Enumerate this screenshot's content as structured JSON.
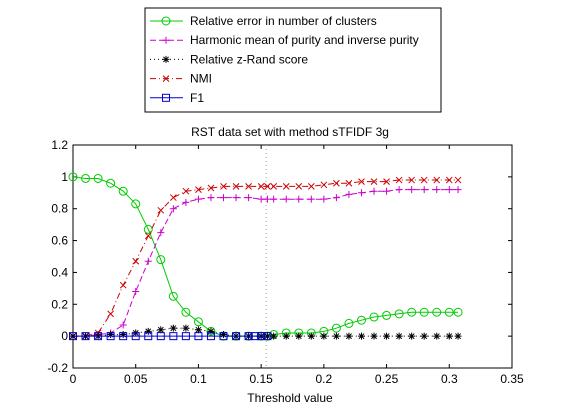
{
  "chart_data": {
    "type": "line",
    "title": "RST data set with method sTFIDF 3g",
    "xlabel": "Threshold value",
    "ylabel": "",
    "xlim": [
      0,
      0.35
    ],
    "ylim": [
      -0.2,
      1.2
    ],
    "xticks": [
      0,
      0.05,
      0.1,
      0.15,
      0.2,
      0.25,
      0.3,
      0.35
    ],
    "xtick_labels": [
      "0",
      "0.05",
      "0.1",
      "0.15",
      "0.2",
      "0.25",
      "0.3",
      "0.35"
    ],
    "yticks": [
      -0.2,
      0,
      0.2,
      0.4,
      0.6,
      0.8,
      1,
      1.2
    ],
    "ytick_labels": [
      "-0.2",
      "0",
      "0.2",
      "0.4",
      "0.6",
      "0.8",
      "1",
      "1.2"
    ],
    "grid": false,
    "legend_position": "top",
    "vertical_reference_line": {
      "x": 0.154,
      "style": "dotted",
      "color": "#a0a0a0"
    },
    "x": [
      0,
      0.01,
      0.02,
      0.03,
      0.04,
      0.05,
      0.06,
      0.07,
      0.08,
      0.09,
      0.1,
      0.11,
      0.12,
      0.13,
      0.14,
      0.15,
      0.16,
      0.17,
      0.18,
      0.19,
      0.2,
      0.21,
      0.22,
      0.23,
      0.24,
      0.25,
      0.26,
      0.27,
      0.28,
      0.29,
      0.3,
      0.307
    ],
    "series": [
      {
        "name": "Relative error in number of clusters",
        "color": "#00cc00",
        "line_style": "solid",
        "marker": "circle",
        "x": [
          0,
          0.01,
          0.02,
          0.03,
          0.04,
          0.05,
          0.06,
          0.07,
          0.08,
          0.09,
          0.1,
          0.11,
          0.12,
          0.13,
          0.14,
          0.15,
          0.155,
          0.16,
          0.17,
          0.18,
          0.19,
          0.2,
          0.21,
          0.22,
          0.23,
          0.24,
          0.25,
          0.26,
          0.27,
          0.28,
          0.29,
          0.3,
          0.307
        ],
        "values": [
          1.0,
          0.99,
          0.99,
          0.96,
          0.91,
          0.83,
          0.67,
          0.48,
          0.25,
          0.15,
          0.09,
          0.03,
          0.0,
          0.0,
          0.0,
          0.0,
          0.0,
          0.01,
          0.02,
          0.02,
          0.02,
          0.03,
          0.05,
          0.08,
          0.1,
          0.12,
          0.13,
          0.14,
          0.15,
          0.15,
          0.15,
          0.15,
          0.15
        ]
      },
      {
        "name": "Harmonic mean of purity and inverse purity",
        "color": "#cc00cc",
        "line_style": "dashed",
        "marker": "plus",
        "x": [
          0,
          0.01,
          0.02,
          0.03,
          0.04,
          0.05,
          0.06,
          0.07,
          0.08,
          0.09,
          0.1,
          0.11,
          0.12,
          0.13,
          0.14,
          0.15,
          0.155,
          0.16,
          0.17,
          0.18,
          0.19,
          0.2,
          0.21,
          0.22,
          0.23,
          0.24,
          0.25,
          0.26,
          0.27,
          0.28,
          0.29,
          0.3,
          0.307
        ],
        "values": [
          0.0,
          0.0,
          0.01,
          0.02,
          0.07,
          0.28,
          0.47,
          0.65,
          0.8,
          0.84,
          0.86,
          0.87,
          0.87,
          0.87,
          0.87,
          0.86,
          0.86,
          0.86,
          0.86,
          0.86,
          0.86,
          0.86,
          0.87,
          0.89,
          0.9,
          0.91,
          0.91,
          0.92,
          0.92,
          0.92,
          0.92,
          0.92,
          0.92
        ]
      },
      {
        "name": "Relative z-Rand score",
        "color": "#000000",
        "line_style": "dotted",
        "marker": "star",
        "x": [
          0,
          0.01,
          0.02,
          0.03,
          0.04,
          0.05,
          0.06,
          0.07,
          0.08,
          0.09,
          0.1,
          0.11,
          0.12,
          0.13,
          0.14,
          0.15,
          0.155,
          0.16,
          0.17,
          0.18,
          0.19,
          0.2,
          0.21,
          0.22,
          0.23,
          0.24,
          0.25,
          0.26,
          0.27,
          0.28,
          0.29,
          0.3,
          0.307
        ],
        "values": [
          0.0,
          0.0,
          0.0,
          0.01,
          0.01,
          0.02,
          0.03,
          0.04,
          0.05,
          0.05,
          0.04,
          0.03,
          0.01,
          0.0,
          0.0,
          0.0,
          0.0,
          0.0,
          0.0,
          0.0,
          0.0,
          0.0,
          0.0,
          0.0,
          0.0,
          0.0,
          0.0,
          0.0,
          0.0,
          0.0,
          0.0,
          0.0,
          0.0
        ]
      },
      {
        "name": "NMI",
        "color": "#cc0000",
        "line_style": "dashdot",
        "marker": "x",
        "x": [
          0,
          0.01,
          0.02,
          0.03,
          0.04,
          0.05,
          0.06,
          0.07,
          0.08,
          0.09,
          0.1,
          0.11,
          0.12,
          0.13,
          0.14,
          0.15,
          0.155,
          0.16,
          0.17,
          0.18,
          0.19,
          0.2,
          0.21,
          0.22,
          0.23,
          0.24,
          0.25,
          0.26,
          0.27,
          0.28,
          0.29,
          0.3,
          0.307
        ],
        "values": [
          0.0,
          0.0,
          0.02,
          0.14,
          0.32,
          0.47,
          0.63,
          0.79,
          0.87,
          0.91,
          0.92,
          0.93,
          0.94,
          0.94,
          0.94,
          0.94,
          0.94,
          0.94,
          0.94,
          0.94,
          0.94,
          0.95,
          0.96,
          0.96,
          0.97,
          0.97,
          0.97,
          0.98,
          0.98,
          0.98,
          0.98,
          0.98,
          0.98
        ]
      },
      {
        "name": "F1",
        "color": "#0000cc",
        "line_style": "solid",
        "marker": "square",
        "x": [
          0,
          0.01,
          0.02,
          0.03,
          0.04,
          0.05,
          0.06,
          0.07,
          0.08,
          0.09,
          0.1,
          0.11,
          0.12,
          0.13,
          0.14,
          0.145,
          0.15,
          0.155
        ],
        "values": [
          0.0,
          0.0,
          0.0,
          0.0,
          0.0,
          0.0,
          0.0,
          0.0,
          0.0,
          0.0,
          0.0,
          0.0,
          0.0,
          0.0,
          0.0,
          0.0,
          0.0,
          0.0
        ]
      }
    ]
  }
}
